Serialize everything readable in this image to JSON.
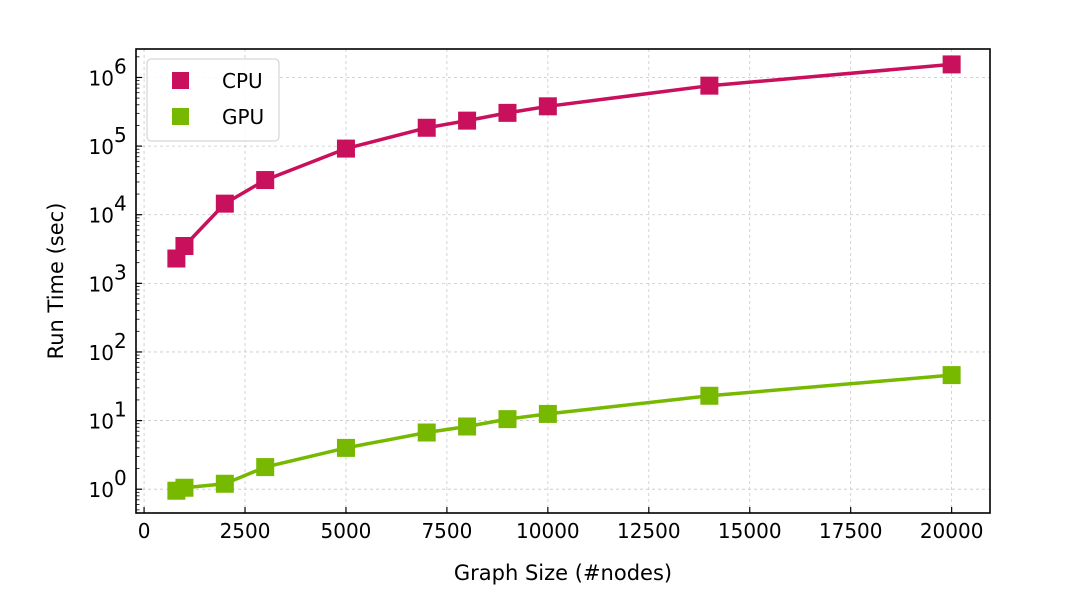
{
  "chart_data": {
    "type": "line",
    "xlabel": "Graph Size (#nodes)",
    "ylabel": "Run Time (sec)",
    "xlim": [
      -200,
      20950
    ],
    "ylim": [
      0.45,
      2600000
    ],
    "yscale": "log",
    "grid": true,
    "legend_position": "top-left",
    "marker": "square",
    "xticks": [
      0,
      2500,
      5000,
      7500,
      10000,
      12500,
      15000,
      17500,
      20000
    ],
    "xtick_labels": [
      "0",
      "2500",
      "5000",
      "7500",
      "10000",
      "12500",
      "15000",
      "17500",
      "20000"
    ],
    "yticks": [
      1,
      10,
      100,
      1000,
      10000,
      100000,
      1000000
    ],
    "ytick_labels": [
      {
        "base": "10",
        "exp": "0"
      },
      {
        "base": "10",
        "exp": "1"
      },
      {
        "base": "10",
        "exp": "2"
      },
      {
        "base": "10",
        "exp": "3"
      },
      {
        "base": "10",
        "exp": "4"
      },
      {
        "base": "10",
        "exp": "5"
      },
      {
        "base": "10",
        "exp": "6"
      }
    ],
    "x": [
      800,
      1000,
      2000,
      3000,
      5000,
      7000,
      8000,
      9000,
      10000,
      14000,
      20000
    ],
    "series": [
      {
        "name": "CPU",
        "color": "#c8105c",
        "values": [
          2300,
          3500,
          14500,
          32000,
          92000,
          185000,
          235000,
          305000,
          380000,
          760000,
          1550000
        ]
      },
      {
        "name": "GPU",
        "color": "#76b900",
        "values": [
          0.95,
          1.05,
          1.2,
          2.1,
          4.0,
          6.7,
          8.2,
          10.5,
          12.5,
          23.0,
          46.0
        ]
      }
    ]
  }
}
